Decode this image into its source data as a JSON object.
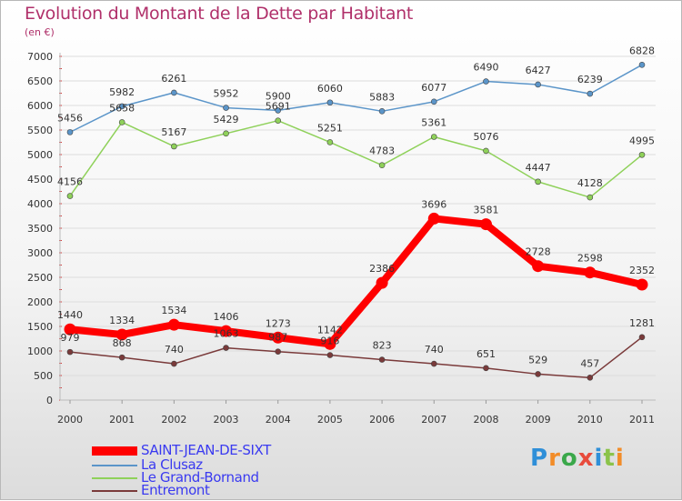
{
  "title": "Evolution du Montant de la Dette par Habitant",
  "subtitle": "(en €)",
  "logo": {
    "text": "Proxiti",
    "letters": [
      "P",
      "r",
      "o",
      "x",
      "i",
      "t",
      "i"
    ],
    "colors": [
      "#2f8fd8",
      "#f28c28",
      "#3aa84a",
      "#e84b3c",
      "#2f8fd8",
      "#8bc34a",
      "#f28c28"
    ]
  },
  "chart_data": {
    "type": "line",
    "title": "Evolution du Montant de la Dette par Habitant",
    "subtitle": "(en €)",
    "xlabel": "",
    "ylabel": "",
    "x": [
      "2000",
      "2001",
      "2002",
      "2003",
      "2004",
      "2005",
      "2006",
      "2007",
      "2008",
      "2009",
      "2010",
      "2011"
    ],
    "ylim": [
      0,
      7000
    ],
    "yticks": [
      0,
      500,
      1000,
      1500,
      2000,
      2500,
      3000,
      3500,
      4000,
      4500,
      5000,
      5500,
      6000,
      6500,
      7000
    ],
    "grid": "horizontal",
    "legend_position": "bottom-left",
    "series": [
      {
        "name": "SAINT-JEAN-DE-SIXT",
        "color": "#ff0000",
        "emphasis": true,
        "values": [
          1440,
          1334,
          1534,
          1406,
          1273,
          1142,
          2386,
          3696,
          3581,
          2728,
          2598,
          2352
        ]
      },
      {
        "name": "La Clusaz",
        "color": "#5b95c9",
        "values": [
          5456,
          5982,
          6261,
          5952,
          5900,
          6060,
          5883,
          6077,
          6490,
          6427,
          6239,
          6828
        ]
      },
      {
        "name": "Le Grand-Bornand",
        "color": "#8fd15a",
        "values": [
          4156,
          5658,
          5167,
          5429,
          5691,
          5251,
          4783,
          5361,
          5076,
          4447,
          4128,
          4995
        ]
      },
      {
        "name": "Entremont",
        "color": "#7a3a3a",
        "values": [
          979,
          868,
          740,
          1063,
          987,
          916,
          823,
          740,
          651,
          529,
          457,
          1281
        ]
      }
    ]
  }
}
